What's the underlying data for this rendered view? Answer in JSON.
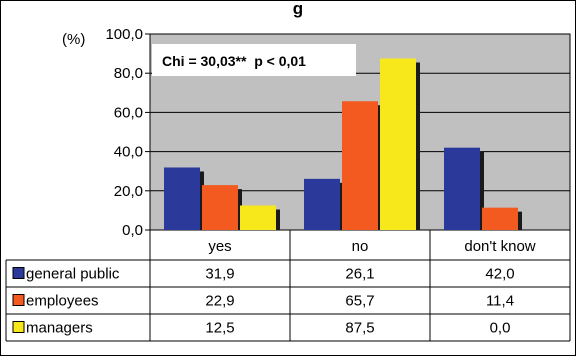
{
  "chart_data": {
    "type": "bar",
    "title": "",
    "partial_title_text": "g",
    "y_unit_label": "(%)",
    "annotation": "Chi = 30,03**  p < 0,01",
    "categories": [
      "yes",
      "no",
      "don't know"
    ],
    "ylim": [
      0,
      100
    ],
    "y_ticks": [
      "0,0",
      "20,0",
      "40,0",
      "60,0",
      "80,0",
      "100,0"
    ],
    "grid": "horizontal",
    "legend": "data table below chart",
    "series": [
      {
        "name": "general public",
        "values": [
          31.9,
          26.1,
          42.0
        ],
        "labels": [
          "31,9",
          "26,1",
          "42,0"
        ],
        "color": "#2b3a9a"
      },
      {
        "name": "employees",
        "values": [
          22.9,
          65.7,
          11.4
        ],
        "labels": [
          "22,9",
          "65,7",
          "11,4"
        ],
        "color": "#f25a20"
      },
      {
        "name": "managers",
        "values": [
          12.5,
          87.5,
          0.0
        ],
        "labels": [
          "12,5",
          "87,5",
          "0,0"
        ],
        "color": "#f7e81c"
      }
    ],
    "colors": {
      "plot_background": "#c0c0c0",
      "bar_shadow": "#1a1a1a"
    }
  }
}
